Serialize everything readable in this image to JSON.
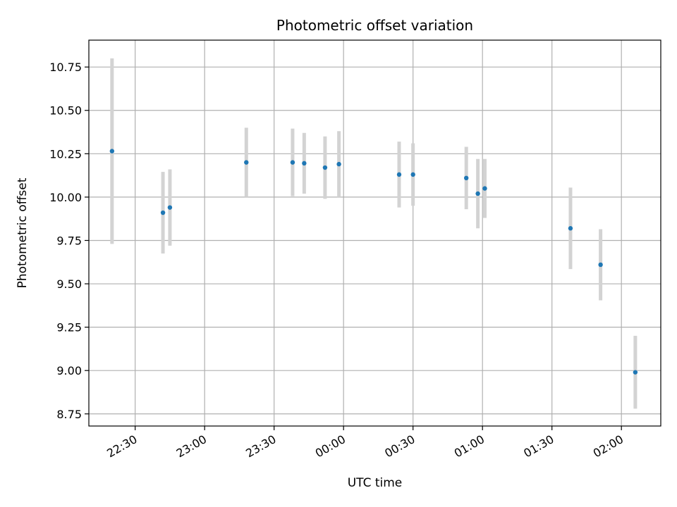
{
  "chart_data": {
    "type": "scatter",
    "title": "Photometric offset variation",
    "xlabel": "UTC time",
    "ylabel": "Photometric offset",
    "x_tick_labels": [
      "22:30",
      "23:00",
      "23:30",
      "00:00",
      "00:30",
      "01:00",
      "01:30",
      "02:00"
    ],
    "y_tick_labels": [
      "8.75",
      "9.00",
      "9.25",
      "9.50",
      "9.75",
      "10.00",
      "10.25",
      "10.50",
      "10.75"
    ],
    "xlim": [
      "22:10",
      "02:17"
    ],
    "ylim": [
      8.68,
      10.905
    ],
    "grid": true,
    "marker_color": "#1f77b4",
    "errorbar_color": "#d3d3d3",
    "points": [
      {
        "x": "22:20",
        "y": 10.265,
        "err": 0.535
      },
      {
        "x": "22:42",
        "y": 9.91,
        "err": 0.235
      },
      {
        "x": "22:45",
        "y": 9.94,
        "err": 0.22
      },
      {
        "x": "23:18",
        "y": 10.2,
        "err": 0.2
      },
      {
        "x": "23:38",
        "y": 10.2,
        "err": 0.195
      },
      {
        "x": "23:43",
        "y": 10.195,
        "err": 0.175
      },
      {
        "x": "23:52",
        "y": 10.17,
        "err": 0.18
      },
      {
        "x": "23:58",
        "y": 10.19,
        "err": 0.19
      },
      {
        "x": "00:24",
        "y": 10.13,
        "err": 0.19
      },
      {
        "x": "00:30",
        "y": 10.13,
        "err": 0.18
      },
      {
        "x": "00:53",
        "y": 10.11,
        "err": 0.18
      },
      {
        "x": "00:58",
        "y": 10.02,
        "err": 0.2
      },
      {
        "x": "01:01",
        "y": 10.05,
        "err": 0.17
      },
      {
        "x": "01:38",
        "y": 9.82,
        "err": 0.235
      },
      {
        "x": "01:51",
        "y": 9.61,
        "err": 0.205
      },
      {
        "x": "02:06",
        "y": 8.99,
        "err": 0.21
      }
    ]
  }
}
